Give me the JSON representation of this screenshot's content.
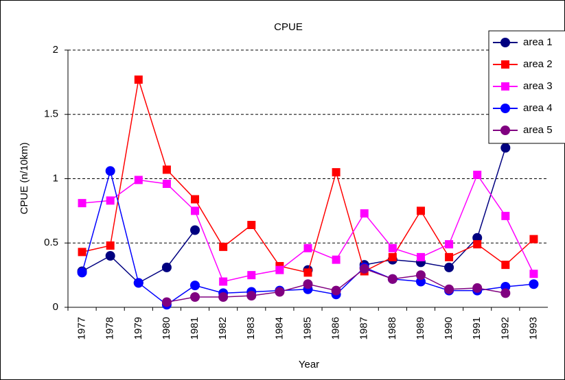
{
  "chart_data": {
    "type": "line",
    "title": "CPUE",
    "x_label": "Year",
    "y_label": "CPUE (n/10km)",
    "categories": [
      "1977",
      "1978",
      "1979",
      "1980",
      "1981",
      "1982",
      "1983",
      "1984",
      "1985",
      "1986",
      "1987",
      "1988",
      "1989",
      "1990",
      "1991",
      "1992",
      "1993"
    ],
    "series": [
      {
        "name": "area 1",
        "color": "#000080",
        "marker": "circle",
        "values": [
          0.28,
          0.4,
          0.19,
          0.31,
          0.6,
          null,
          null,
          null,
          0.29,
          null,
          0.33,
          0.37,
          0.35,
          0.31,
          0.54,
          1.24,
          null
        ]
      },
      {
        "name": "area 2",
        "color": "#ff0000",
        "marker": "square",
        "values": [
          0.43,
          0.48,
          1.77,
          1.07,
          0.84,
          0.47,
          0.64,
          0.32,
          0.27,
          1.05,
          0.28,
          0.39,
          0.75,
          0.39,
          0.49,
          0.33,
          0.53
        ]
      },
      {
        "name": "area 3",
        "color": "#ff00ff",
        "marker": "square",
        "values": [
          0.81,
          0.83,
          0.99,
          0.96,
          0.75,
          0.2,
          0.25,
          0.29,
          0.46,
          0.37,
          0.73,
          0.46,
          0.39,
          0.49,
          1.03,
          0.71,
          0.26
        ]
      },
      {
        "name": "area 4",
        "color": "#0000ff",
        "marker": "circle",
        "values": [
          0.27,
          1.06,
          0.19,
          0.02,
          0.17,
          0.11,
          0.12,
          0.13,
          0.14,
          0.1,
          0.31,
          0.22,
          0.2,
          0.13,
          0.13,
          0.16,
          0.18
        ]
      },
      {
        "name": "area 5",
        "color": "#800080",
        "marker": "circle",
        "values": [
          null,
          null,
          null,
          0.04,
          0.08,
          0.08,
          0.09,
          0.12,
          0.18,
          0.13,
          0.3,
          0.22,
          0.25,
          0.14,
          0.15,
          0.11,
          null
        ]
      }
    ],
    "ylim": [
      0,
      2
    ],
    "yticks": [
      0,
      0.5,
      1,
      1.5,
      2
    ],
    "grid": true,
    "legend": "top-right"
  }
}
